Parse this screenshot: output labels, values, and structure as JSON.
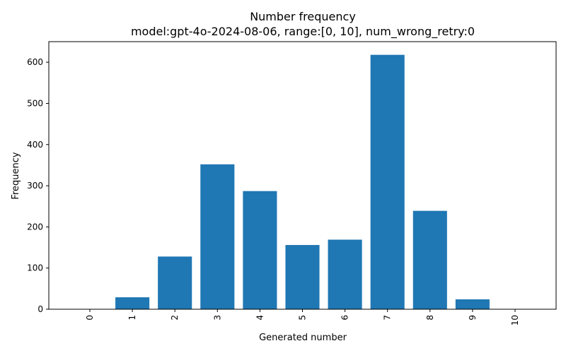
{
  "chart_data": {
    "type": "bar",
    "title": "Number frequency",
    "subtitle": "model:gpt-4o-2024-08-06, range:[0, 10], num_wrong_retry:0",
    "xlabel": "Generated number",
    "ylabel": "Frequency",
    "categories": [
      "0",
      "1",
      "2",
      "3",
      "4",
      "5",
      "6",
      "7",
      "8",
      "9",
      "10"
    ],
    "values": [
      0,
      29,
      128,
      352,
      287,
      156,
      169,
      618,
      239,
      24,
      0
    ],
    "ylim": [
      0,
      650
    ],
    "yticks": [
      0,
      100,
      200,
      300,
      400,
      500,
      600
    ],
    "grid": false,
    "bar_color": "#1f77b4"
  }
}
